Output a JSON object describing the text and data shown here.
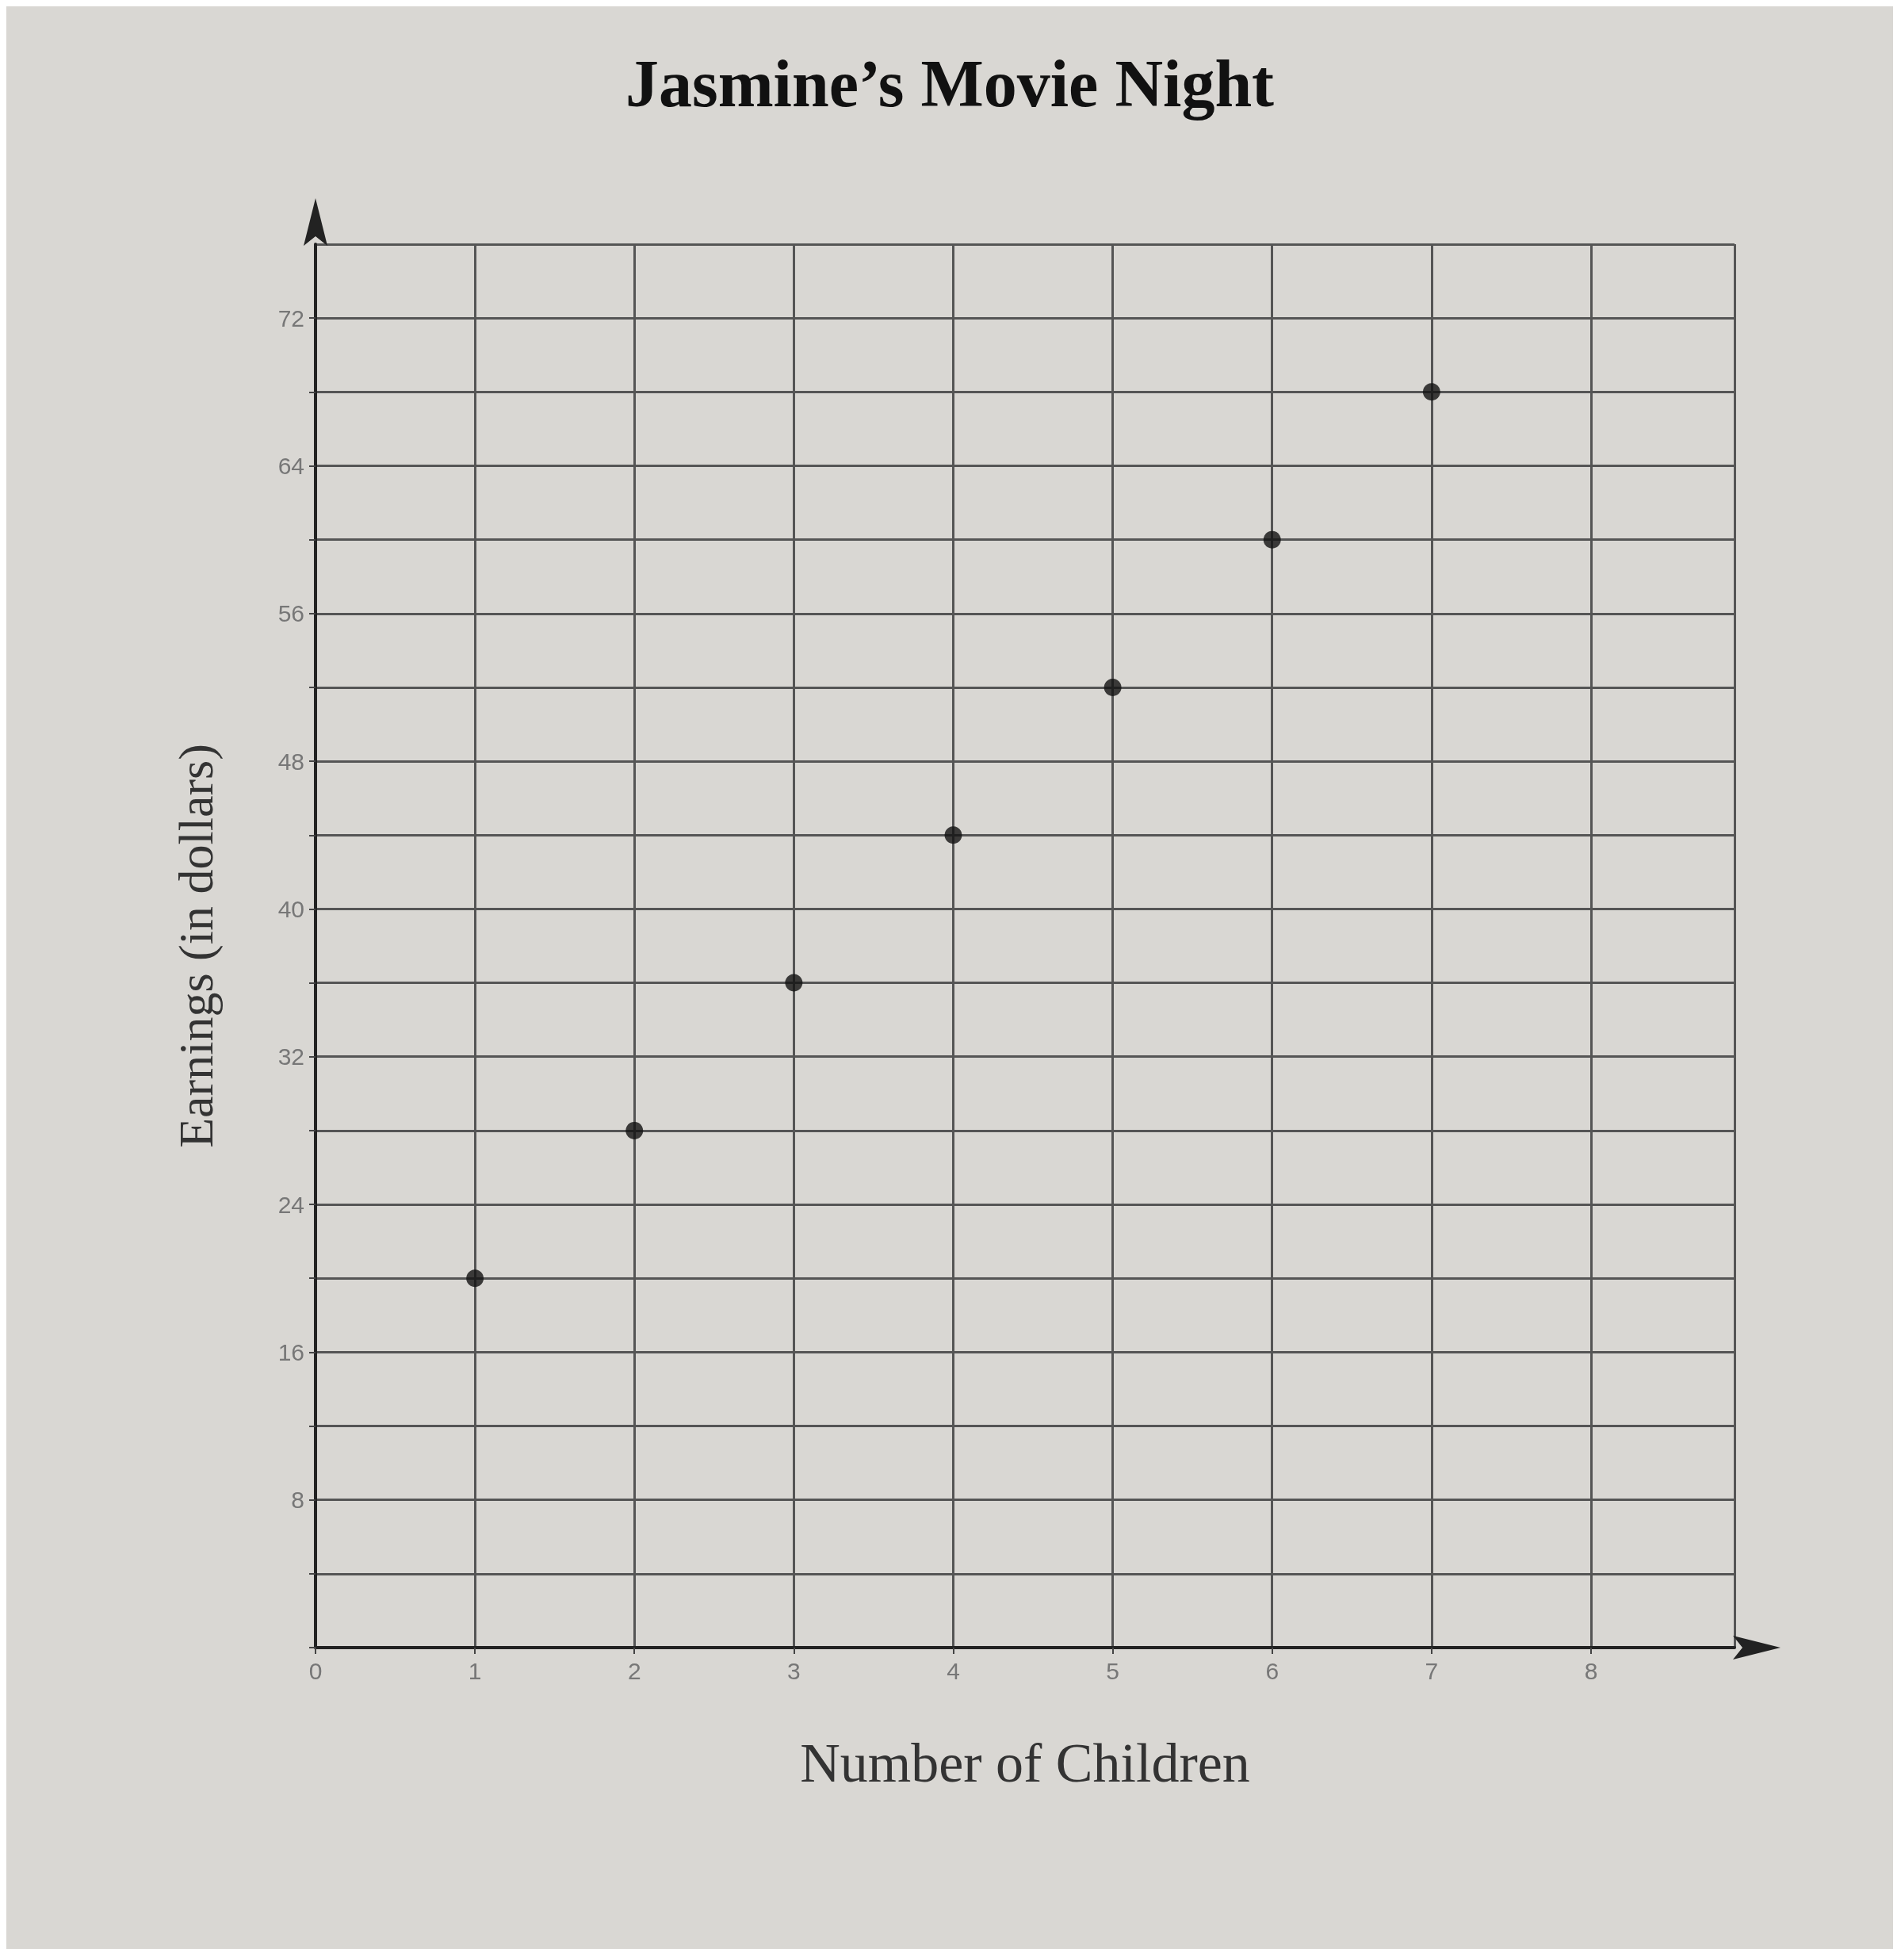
{
  "chart_data": {
    "type": "scatter",
    "title": "Jasmine’s Movie Night",
    "xlabel": "Number of Children",
    "ylabel": "Earnings (in dollars)",
    "x": [
      1,
      2,
      3,
      4,
      5,
      6,
      7
    ],
    "values": [
      20,
      28,
      36,
      44,
      52,
      60,
      68
    ],
    "color": "#111111",
    "marker": "circle",
    "xlim": [
      0,
      8.9
    ],
    "xticks": [
      0,
      1,
      2,
      3,
      4,
      5,
      6,
      7,
      8
    ],
    "ylim": [
      0,
      76
    ],
    "yticks": [
      {
        "value": 0,
        "label": null
      },
      {
        "value": 4,
        "label": null
      },
      8,
      {
        "value": 12,
        "label": null
      },
      16,
      {
        "value": 20,
        "label": null
      },
      24,
      {
        "value": 28,
        "label": null
      },
      32,
      {
        "value": 36,
        "label": null
      },
      40,
      {
        "value": 44,
        "label": null
      },
      48,
      {
        "value": 52,
        "label": null
      },
      56,
      {
        "value": 60,
        "label": null
      },
      64,
      {
        "value": 68,
        "label": null
      },
      72,
      {
        "value": 76,
        "label": null
      }
    ],
    "grid": true
  }
}
